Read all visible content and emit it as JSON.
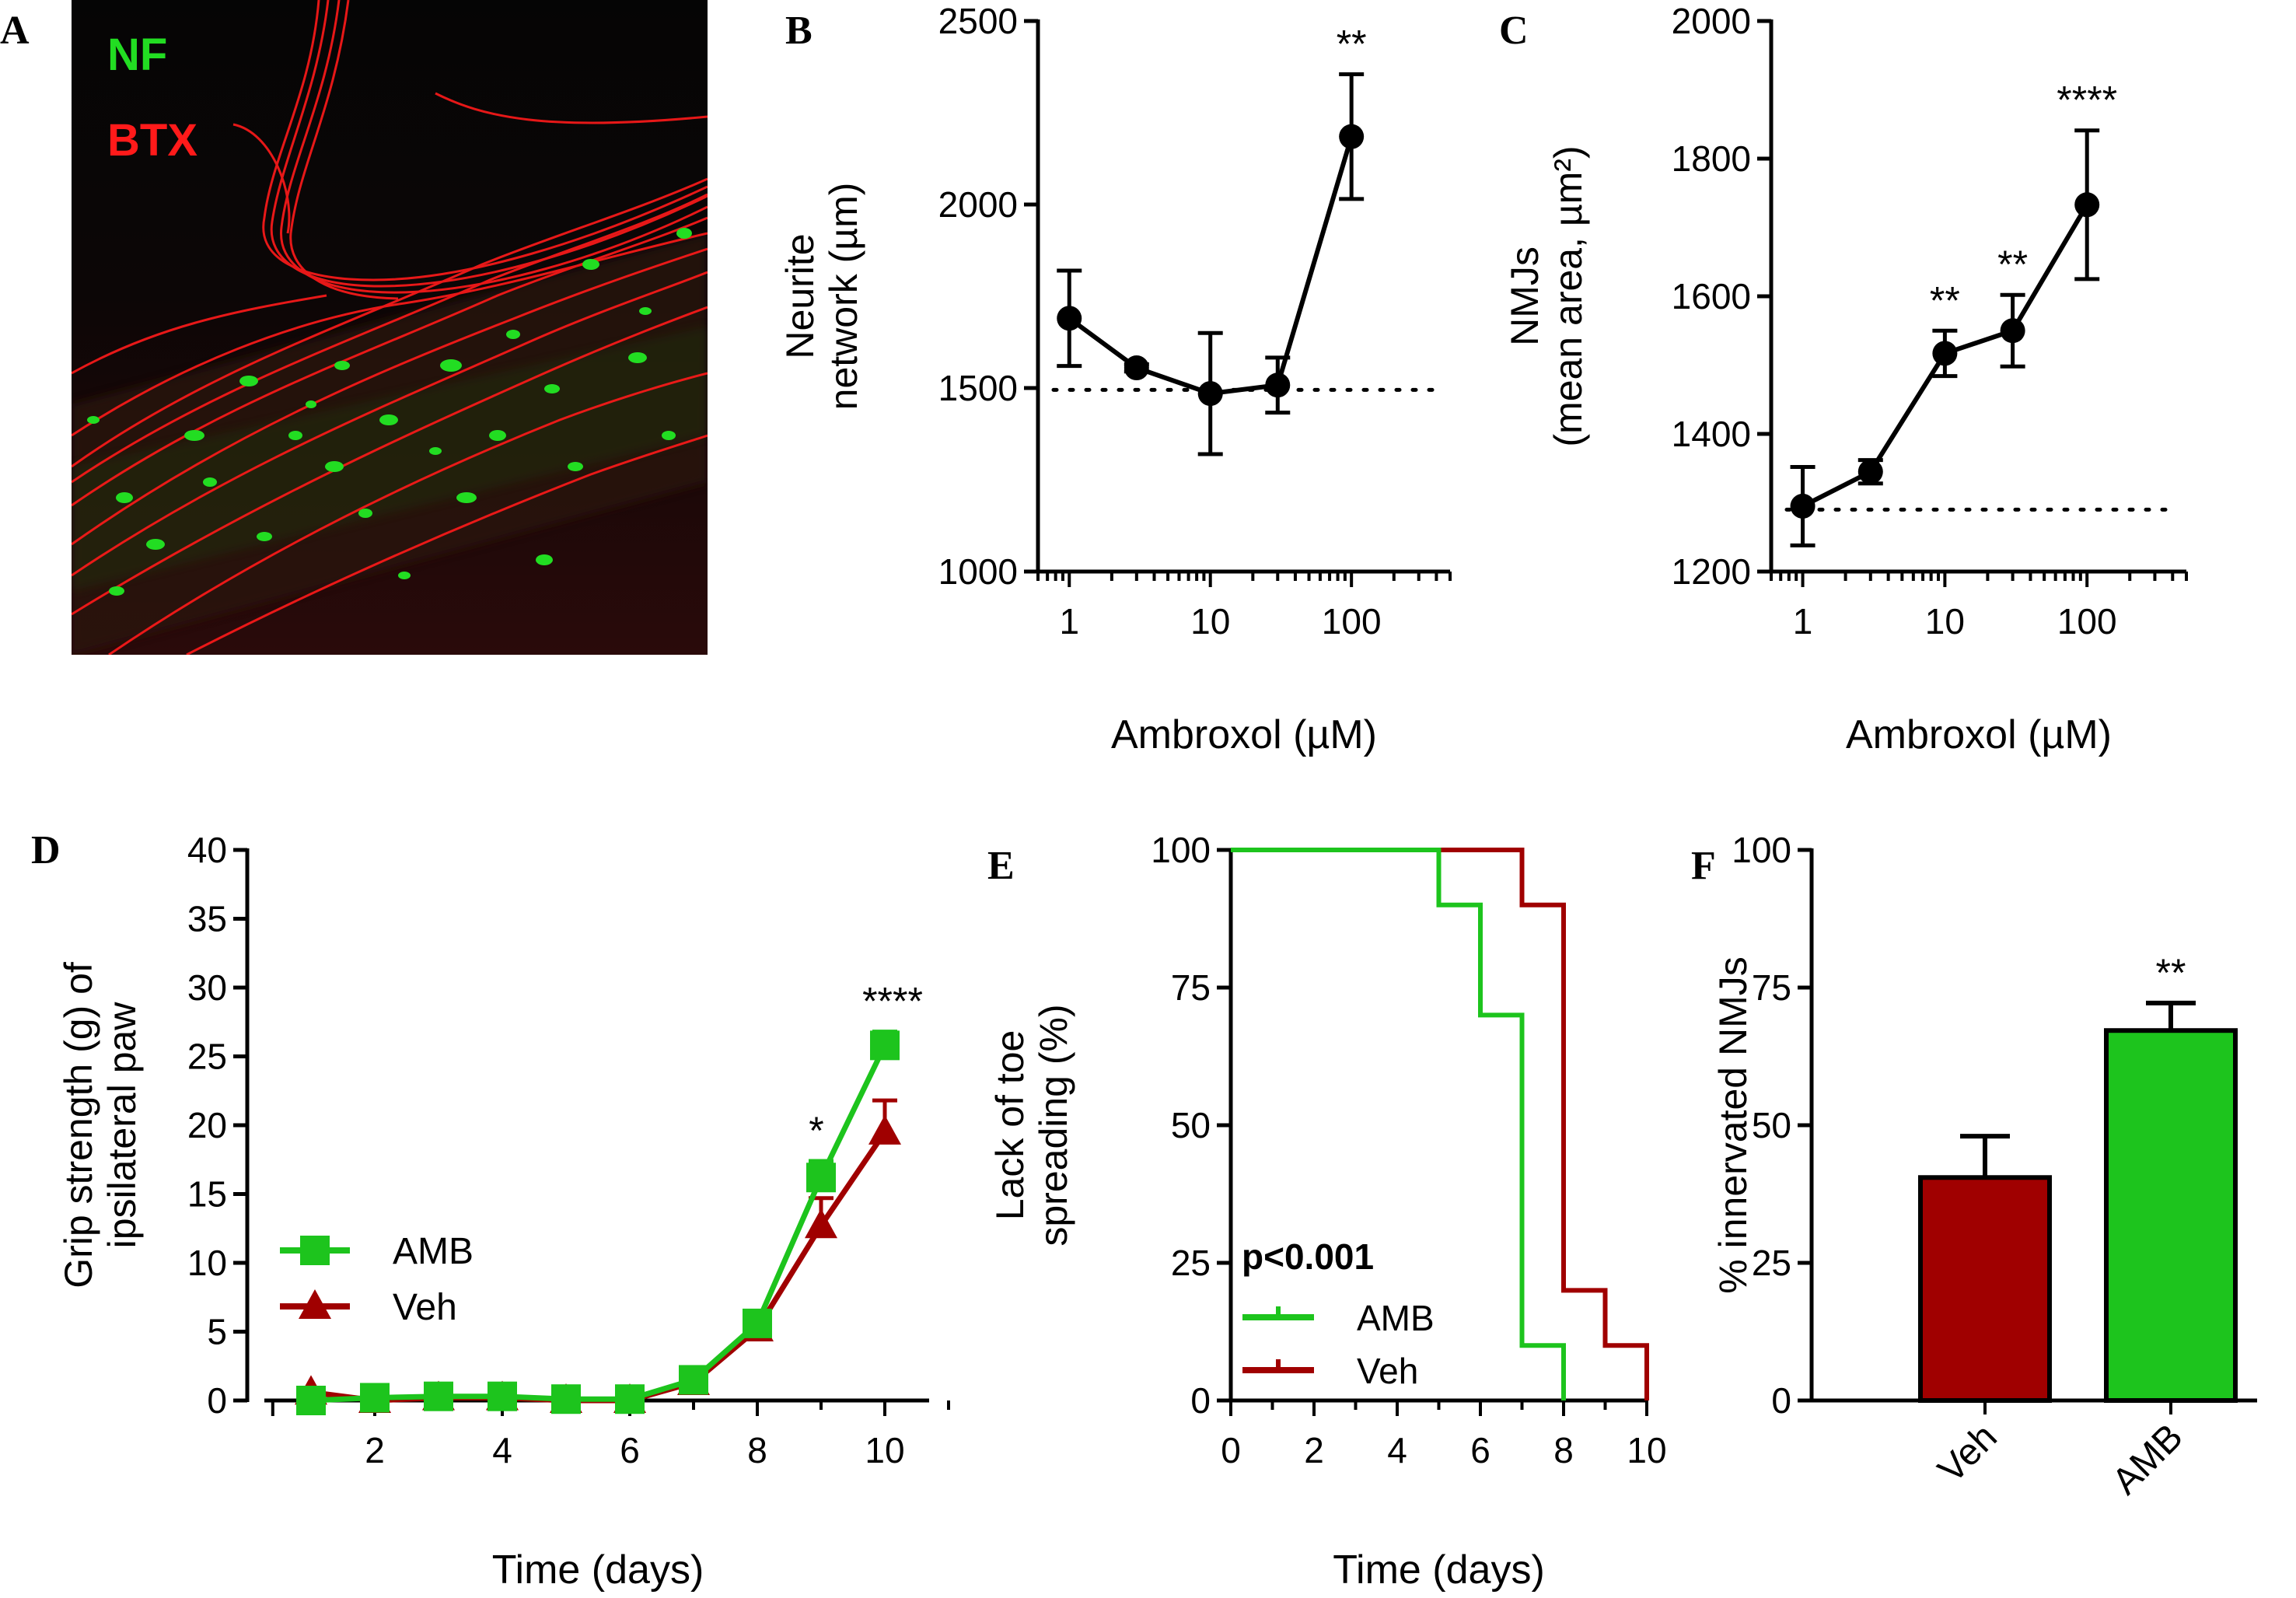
{
  "figure": {
    "panel_letters": [
      "A",
      "B",
      "C",
      "D",
      "E",
      "F"
    ]
  },
  "colors": {
    "green": "#1DC41D",
    "red": "#A00000",
    "black": "#000000",
    "nf_green": "#22DD22",
    "btx_red": "#FF1A1A"
  },
  "panel_a": {
    "label_nf": "NF",
    "label_btx": "BTX"
  },
  "chart_data": [
    {
      "id": "B",
      "type": "line",
      "xscale": "log",
      "xlim": [
        0.6,
        500
      ],
      "ylim": [
        1000,
        2500
      ],
      "yticks": [
        1000,
        1500,
        2000,
        2500
      ],
      "ytick_labels": [
        "1000",
        "1500",
        "2000",
        "2500"
      ],
      "xticks": [
        1,
        10,
        100
      ],
      "xtick_labels": [
        "1",
        "10",
        "100"
      ],
      "ylabel_lines": [
        "Neurite",
        "network (µm)"
      ],
      "xlabel": "Ambroxol (µM)",
      "baseline": 1495,
      "series": [
        {
          "name": "Ambroxol",
          "x": [
            1,
            3,
            10,
            30,
            100
          ],
          "y": [
            1690,
            1555,
            1485,
            1508,
            2185
          ],
          "err": [
            130,
            10,
            165,
            75,
            170
          ]
        }
      ],
      "annotations": [
        {
          "x": 100,
          "label": "**"
        }
      ]
    },
    {
      "id": "C",
      "type": "line",
      "xscale": "log",
      "xlim": [
        0.6,
        500
      ],
      "ylim": [
        1200,
        2000
      ],
      "yticks": [
        1200,
        1400,
        1600,
        1800,
        2000
      ],
      "ytick_labels": [
        "1200",
        "1400",
        "1600",
        "1800",
        "2000"
      ],
      "xticks": [
        1,
        10,
        100
      ],
      "xtick_labels": [
        "1",
        "10",
        "100"
      ],
      "ylabel_lines": [
        "NMJs",
        "(mean area, µm²)"
      ],
      "xlabel": "Ambroxol (µM)",
      "baseline": 1290,
      "series": [
        {
          "name": "Ambroxol",
          "x": [
            1,
            3,
            10,
            30,
            100
          ],
          "y": [
            1295,
            1345,
            1517,
            1550,
            1733
          ],
          "err": [
            57,
            17,
            33,
            52,
            108
          ]
        }
      ],
      "annotations": [
        {
          "x": 10,
          "label": "**"
        },
        {
          "x": 30,
          "label": "**"
        },
        {
          "x": 100,
          "label": "****"
        }
      ]
    },
    {
      "id": "D",
      "type": "line",
      "xlim": [
        0,
        11
      ],
      "ylim": [
        0,
        40
      ],
      "yticks": [
        0,
        5,
        10,
        15,
        20,
        25,
        30,
        35,
        40
      ],
      "ytick_labels": [
        "0",
        "5",
        "10",
        "15",
        "20",
        "25",
        "30",
        "35",
        "40"
      ],
      "xticks": [
        2,
        4,
        6,
        8,
        10
      ],
      "xtick_labels": [
        "2",
        "4",
        "6",
        "8",
        "10"
      ],
      "ylabel_lines": [
        "Grip strength (g) of",
        "ipsilateral paw"
      ],
      "xlabel": "Time (days)",
      "legend_position": "center-left",
      "series": [
        {
          "name": "AMB",
          "marker": "square",
          "color": "green",
          "x": [
            1,
            2,
            3,
            4,
            5,
            6,
            7,
            8,
            9,
            10
          ],
          "y": [
            0.0,
            0.2,
            0.3,
            0.3,
            0.1,
            0.1,
            1.5,
            5.6,
            16.2,
            25.8
          ],
          "err": [
            0,
            0,
            0,
            0,
            0,
            0,
            0.5,
            0.8,
            1.2,
            1.0
          ]
        },
        {
          "name": "Veh",
          "marker": "triangle",
          "color": "red",
          "x": [
            1,
            2,
            3,
            4,
            5,
            6,
            7,
            8,
            9,
            10
          ],
          "y": [
            0.6,
            0.0,
            0.2,
            0.2,
            0.0,
            0.0,
            1.3,
            5.2,
            12.7,
            19.5
          ],
          "err": [
            0,
            0,
            0,
            0,
            0,
            0,
            0.6,
            1.3,
            2.0,
            2.3
          ]
        }
      ],
      "annotations": [
        {
          "x": 9,
          "label": "*"
        },
        {
          "x": 10,
          "label": "****"
        }
      ]
    },
    {
      "id": "E",
      "type": "line",
      "step": true,
      "xlim": [
        0,
        10
      ],
      "ylim": [
        0,
        100
      ],
      "yticks": [
        0,
        25,
        50,
        75,
        100
      ],
      "ytick_labels": [
        "0",
        "25",
        "50",
        "75",
        "100"
      ],
      "xticks": [
        0,
        2,
        4,
        6,
        8,
        10
      ],
      "xtick_labels": [
        "0",
        "2",
        "4",
        "6",
        "8",
        "10"
      ],
      "ylabel_lines": [
        "Lack of toe",
        "spreading (%)"
      ],
      "xlabel": "Time (days)",
      "stat_text": "p<0.001",
      "legend_position": "bottom-left",
      "series": [
        {
          "name": "AMB",
          "color": "green",
          "x": [
            0,
            5,
            6,
            7,
            8
          ],
          "y": [
            100,
            90,
            70,
            10,
            0
          ]
        },
        {
          "name": "Veh",
          "color": "red",
          "x": [
            0,
            7,
            8,
            9,
            10
          ],
          "y": [
            100,
            90,
            20,
            10,
            0
          ]
        }
      ]
    },
    {
      "id": "F",
      "type": "bar",
      "ylim": [
        0,
        100
      ],
      "yticks": [
        0,
        25,
        50,
        75,
        100
      ],
      "ytick_labels": [
        "0",
        "25",
        "50",
        "75",
        "100"
      ],
      "ylabel_lines": [
        "% innervated NMJs"
      ],
      "categories": [
        "Veh",
        "AMB"
      ],
      "values": [
        40.5,
        67.2
      ],
      "err": [
        7.5,
        5.0
      ],
      "bar_colors": [
        "red",
        "green"
      ],
      "annotations": [
        {
          "category": "AMB",
          "label": "**"
        }
      ]
    }
  ]
}
